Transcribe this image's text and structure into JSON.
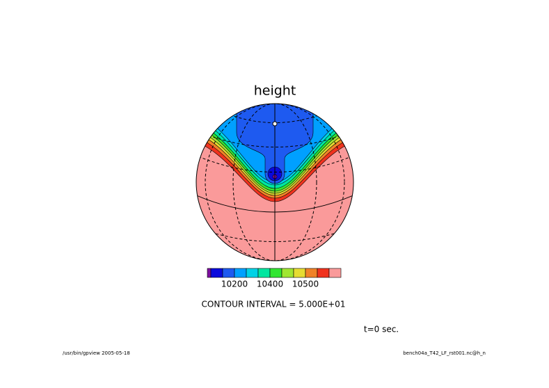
{
  "title": "height",
  "colorbar": {
    "colors": [
      "#7d0fa0",
      "#0a0adc",
      "#1e5af0",
      "#00a0ff",
      "#00d2e6",
      "#00e6a0",
      "#32e632",
      "#a0e632",
      "#e6dc32",
      "#f08228",
      "#f0321e",
      "#fa9a9a"
    ],
    "labels": [
      "10200",
      "10400",
      "10500"
    ]
  },
  "contour_interval": "CONTOUR INTERVAL = 5.000E+01",
  "time": "t=0 sec.",
  "footer_left": "/usr/bin/gpview  2005-05-18",
  "footer_right": "bench04a_T42_LF_rst001.nc@h_n"
}
